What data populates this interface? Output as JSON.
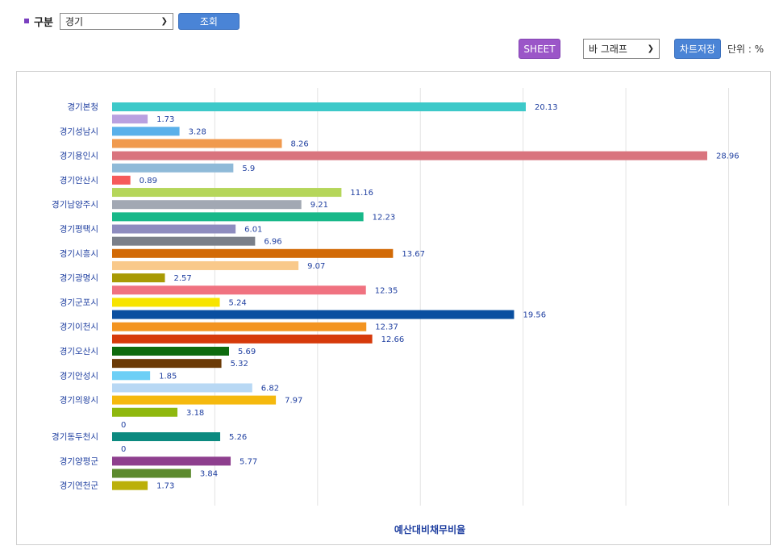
{
  "filter": {
    "label": "구분",
    "selected": "경기",
    "query_button": "조회"
  },
  "toolbar": {
    "sheet_button": "SHEET",
    "chart_type": "바 그래프",
    "save_button": "차트저장",
    "unit": "단위 : %"
  },
  "chart_data": {
    "type": "bar",
    "orientation": "horizontal",
    "title": "",
    "xlabel": "예산대비채무비율",
    "ylabel": "",
    "xlim": [
      0,
      31
    ],
    "grid": true,
    "rows": [
      {
        "label": "경기본청",
        "value": 20.13,
        "color": "#3dc9c9"
      },
      {
        "label": "",
        "value": 1.73,
        "color": "#b9a0e0"
      },
      {
        "label": "경기성남시",
        "value": 3.28,
        "color": "#5ab0ea"
      },
      {
        "label": "",
        "value": 8.26,
        "color": "#f09a4e"
      },
      {
        "label": "경기용인시",
        "value": 28.96,
        "color": "#d9747e"
      },
      {
        "label": "",
        "value": 5.9,
        "color": "#8fbad8"
      },
      {
        "label": "경기안산시",
        "value": 0.89,
        "color": "#f65a5a"
      },
      {
        "label": "",
        "value": 11.16,
        "color": "#b5d65a"
      },
      {
        "label": "경기남양주시",
        "value": 9.21,
        "color": "#a2a8b3"
      },
      {
        "label": "",
        "value": 12.23,
        "color": "#18b889"
      },
      {
        "label": "경기평택시",
        "value": 6.01,
        "color": "#8e8cbf"
      },
      {
        "label": "",
        "value": 6.96,
        "color": "#7a7f89"
      },
      {
        "label": "경기시흥시",
        "value": 13.67,
        "color": "#d26a06"
      },
      {
        "label": "",
        "value": 9.07,
        "color": "#f9c98b"
      },
      {
        "label": "경기광명시",
        "value": 2.57,
        "color": "#a89a04"
      },
      {
        "label": "",
        "value": 12.35,
        "color": "#f07280"
      },
      {
        "label": "경기군포시",
        "value": 5.24,
        "color": "#f7e400"
      },
      {
        "label": "",
        "value": 19.56,
        "color": "#0a4fa0"
      },
      {
        "label": "경기이천시",
        "value": 12.37,
        "color": "#f39420"
      },
      {
        "label": "",
        "value": 12.66,
        "color": "#d63a0b"
      },
      {
        "label": "경기오산시",
        "value": 5.69,
        "color": "#0e6b0e"
      },
      {
        "label": "",
        "value": 5.32,
        "color": "#6b3a06"
      },
      {
        "label": "경기안성시",
        "value": 1.85,
        "color": "#6dcff6"
      },
      {
        "label": "",
        "value": 6.82,
        "color": "#b8d8f4"
      },
      {
        "label": "경기의왕시",
        "value": 7.97,
        "color": "#f5b90e"
      },
      {
        "label": "",
        "value": 3.18,
        "color": "#8fb80e"
      },
      {
        "label": "",
        "value": 0,
        "color": "#999999"
      },
      {
        "label": "경기동두천시",
        "value": 5.26,
        "color": "#0c8a80"
      },
      {
        "label": "",
        "value": 0,
        "color": "#999999"
      },
      {
        "label": "경기양평군",
        "value": 5.77,
        "color": "#8e3f8e"
      },
      {
        "label": "",
        "value": 3.84,
        "color": "#5c8a2e"
      },
      {
        "label": "경기연천군",
        "value": 1.73,
        "color": "#bbb00a"
      }
    ],
    "label_color": "#1f3fa0",
    "value_color": "#1f3fa0",
    "inside_label_color": "#3b57b8"
  }
}
